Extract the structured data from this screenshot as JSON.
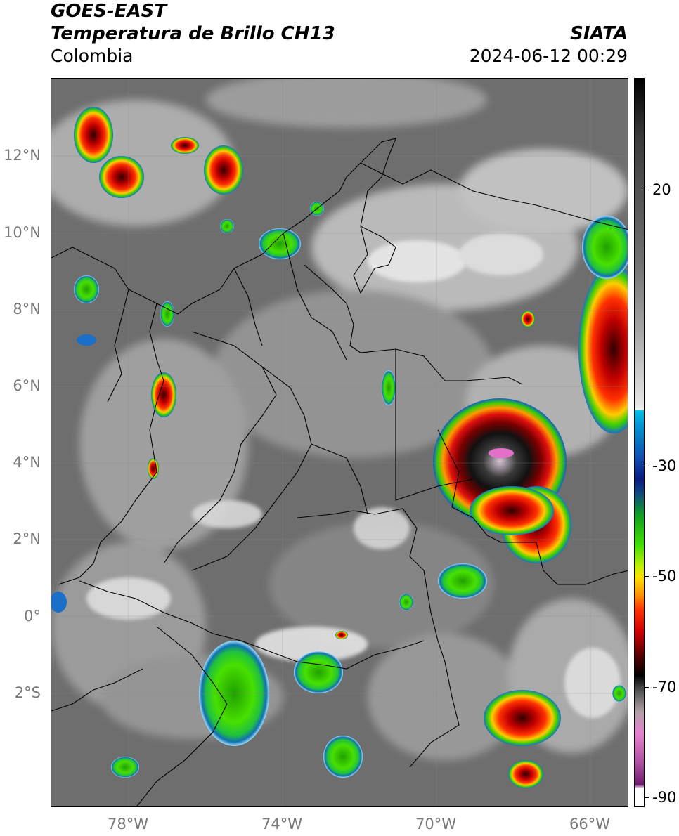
{
  "header": {
    "line1": "GOES-EAST",
    "line2": "Temperatura de Brillo CH13",
    "region": "Colombia",
    "brand": "SIATA",
    "datetime": "2024-06-12 00:29"
  },
  "map": {
    "lat_ticks": [
      "12°N",
      "10°N",
      "8°N",
      "6°N",
      "4°N",
      "2°N",
      "0°",
      "2°S"
    ],
    "lon_ticks": [
      "78°W",
      "74°W",
      "70°W",
      "66°W"
    ]
  },
  "colorbar": {
    "ticks": [
      "20",
      "-30",
      "-50",
      "-70",
      "-90"
    ]
  },
  "colors": {
    "background_gray": "#707070",
    "cloud_white": "#d6d6d6",
    "border_line": "#000000",
    "axis_text": "#777777"
  }
}
